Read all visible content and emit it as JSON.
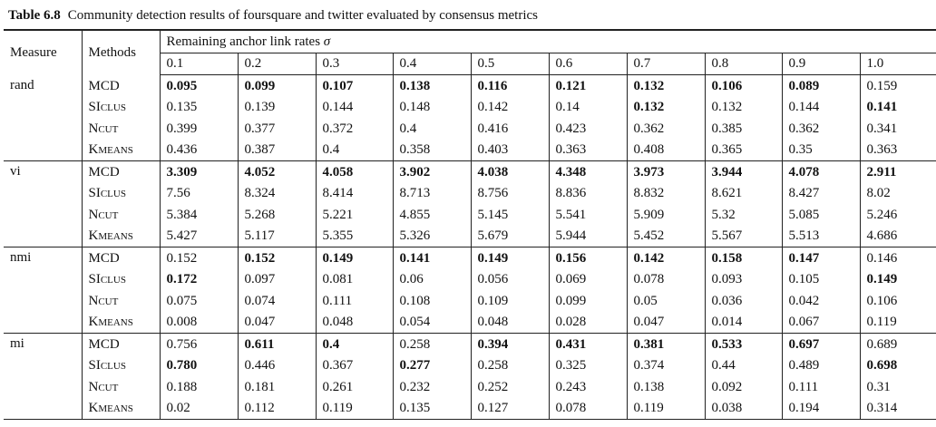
{
  "caption": {
    "label": "Table 6.8",
    "text": "Community detection results of foursquare and twitter evaluated by consensus metrics"
  },
  "header": {
    "measure": "Measure",
    "methods": "Methods",
    "group": "Remaining anchor link rates σ",
    "rates": [
      "0.1",
      "0.2",
      "0.3",
      "0.4",
      "0.5",
      "0.6",
      "0.7",
      "0.8",
      "0.9",
      "1.0"
    ]
  },
  "groups": [
    {
      "measure": "rand",
      "rows": [
        {
          "method": "MCD",
          "values": [
            "0.095",
            "0.099",
            "0.107",
            "0.138",
            "0.116",
            "0.121",
            "0.132",
            "0.106",
            "0.089",
            "0.159"
          ],
          "bold": [
            true,
            true,
            true,
            true,
            true,
            true,
            true,
            true,
            true,
            false
          ]
        },
        {
          "method": "SIclus",
          "values": [
            "0.135",
            "0.139",
            "0.144",
            "0.148",
            "0.142",
            "0.14",
            "0.132",
            "0.132",
            "0.144",
            "0.141"
          ],
          "bold": [
            false,
            false,
            false,
            false,
            false,
            false,
            true,
            false,
            false,
            true
          ]
        },
        {
          "method": "Ncut",
          "values": [
            "0.399",
            "0.377",
            "0.372",
            "0.4",
            "0.416",
            "0.423",
            "0.362",
            "0.385",
            "0.362",
            "0.341"
          ],
          "bold": [
            false,
            false,
            false,
            false,
            false,
            false,
            false,
            false,
            false,
            false
          ]
        },
        {
          "method": "Kmeans",
          "values": [
            "0.436",
            "0.387",
            "0.4",
            "0.358",
            "0.403",
            "0.363",
            "0.408",
            "0.365",
            "0.35",
            "0.363"
          ],
          "bold": [
            false,
            false,
            false,
            false,
            false,
            false,
            false,
            false,
            false,
            false
          ]
        }
      ]
    },
    {
      "measure": "vi",
      "rows": [
        {
          "method": "MCD",
          "values": [
            "3.309",
            "4.052",
            "4.058",
            "3.902",
            "4.038",
            "4.348",
            "3.973",
            "3.944",
            "4.078",
            "2.911"
          ],
          "bold": [
            true,
            true,
            true,
            true,
            true,
            true,
            true,
            true,
            true,
            true
          ]
        },
        {
          "method": "SIclus",
          "values": [
            "7.56",
            "8.324",
            "8.414",
            "8.713",
            "8.756",
            "8.836",
            "8.832",
            "8.621",
            "8.427",
            "8.02"
          ],
          "bold": [
            false,
            false,
            false,
            false,
            false,
            false,
            false,
            false,
            false,
            false
          ]
        },
        {
          "method": "Ncut",
          "values": [
            "5.384",
            "5.268",
            "5.221",
            "4.855",
            "5.145",
            "5.541",
            "5.909",
            "5.32",
            "5.085",
            "5.246"
          ],
          "bold": [
            false,
            false,
            false,
            false,
            false,
            false,
            false,
            false,
            false,
            false
          ]
        },
        {
          "method": "Kmeans",
          "values": [
            "5.427",
            "5.117",
            "5.355",
            "5.326",
            "5.679",
            "5.944",
            "5.452",
            "5.567",
            "5.513",
            "4.686"
          ],
          "bold": [
            false,
            false,
            false,
            false,
            false,
            false,
            false,
            false,
            false,
            false
          ]
        }
      ]
    },
    {
      "measure": "nmi",
      "rows": [
        {
          "method": "MCD",
          "values": [
            "0.152",
            "0.152",
            "0.149",
            "0.141",
            "0.149",
            "0.156",
            "0.142",
            "0.158",
            "0.147",
            "0.146"
          ],
          "bold": [
            false,
            true,
            true,
            true,
            true,
            true,
            true,
            true,
            true,
            false
          ]
        },
        {
          "method": "SIclus",
          "values": [
            "0.172",
            "0.097",
            "0.081",
            "0.06",
            "0.056",
            "0.069",
            "0.078",
            "0.093",
            "0.105",
            "0.149"
          ],
          "bold": [
            true,
            false,
            false,
            false,
            false,
            false,
            false,
            false,
            false,
            true
          ]
        },
        {
          "method": "Ncut",
          "values": [
            "0.075",
            "0.074",
            "0.111",
            "0.108",
            "0.109",
            "0.099",
            "0.05",
            "0.036",
            "0.042",
            "0.106"
          ],
          "bold": [
            false,
            false,
            false,
            false,
            false,
            false,
            false,
            false,
            false,
            false
          ]
        },
        {
          "method": "Kmeans",
          "values": [
            "0.008",
            "0.047",
            "0.048",
            "0.054",
            "0.048",
            "0.028",
            "0.047",
            "0.014",
            "0.067",
            "0.119"
          ],
          "bold": [
            false,
            false,
            false,
            false,
            false,
            false,
            false,
            false,
            false,
            false
          ]
        }
      ]
    },
    {
      "measure": "mi",
      "rows": [
        {
          "method": "MCD",
          "values": [
            "0.756",
            "0.611",
            "0.4",
            "0.258",
            "0.394",
            "0.431",
            "0.381",
            "0.533",
            "0.697",
            "0.689"
          ],
          "bold": [
            false,
            true,
            true,
            false,
            true,
            true,
            true,
            true,
            true,
            false
          ]
        },
        {
          "method": "SIclus",
          "values": [
            "0.780",
            "0.446",
            "0.367",
            "0.277",
            "0.258",
            "0.325",
            "0.374",
            "0.44",
            "0.489",
            "0.698"
          ],
          "bold": [
            true,
            false,
            false,
            true,
            false,
            false,
            false,
            false,
            false,
            true
          ]
        },
        {
          "method": "Ncut",
          "values": [
            "0.188",
            "0.181",
            "0.261",
            "0.232",
            "0.252",
            "0.243",
            "0.138",
            "0.092",
            "0.111",
            "0.31"
          ],
          "bold": [
            false,
            false,
            false,
            false,
            false,
            false,
            false,
            false,
            false,
            false
          ]
        },
        {
          "method": "Kmeans",
          "values": [
            "0.02",
            "0.112",
            "0.119",
            "0.135",
            "0.127",
            "0.078",
            "0.119",
            "0.038",
            "0.194",
            "0.314"
          ],
          "bold": [
            false,
            false,
            false,
            false,
            false,
            false,
            false,
            false,
            false,
            false
          ]
        }
      ]
    }
  ]
}
